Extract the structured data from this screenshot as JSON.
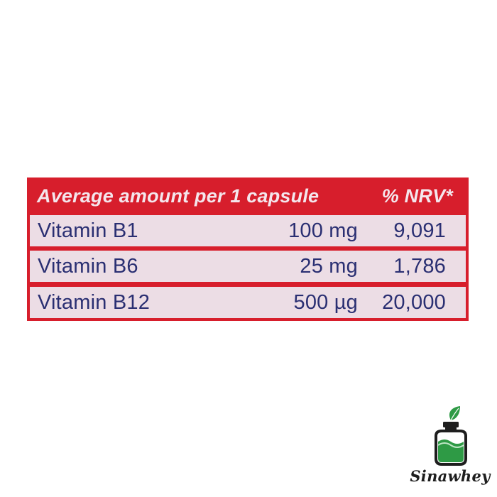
{
  "label": {
    "header": {
      "amount_label": "Average amount per 1 capsule",
      "nrv_label": "% NRV*"
    },
    "rows": [
      {
        "name": "Vitamin B1",
        "amount": "100 mg",
        "nrv": "9,091"
      },
      {
        "name": "Vitamin B6",
        "amount": "25 mg",
        "nrv": "1,786"
      },
      {
        "name": "Vitamin B12",
        "amount": "500 µg",
        "nrv": "20,000"
      }
    ]
  },
  "brand": {
    "name": "Sinawhey",
    "logo_icon": "jar-with-leaf-icon"
  },
  "colors": {
    "label_red": "#d71e2c",
    "row_background": "#ecdde5",
    "text_navy": "#2a2f72",
    "header_text": "#f4e6ec",
    "brand_green": "#2e9a45"
  }
}
